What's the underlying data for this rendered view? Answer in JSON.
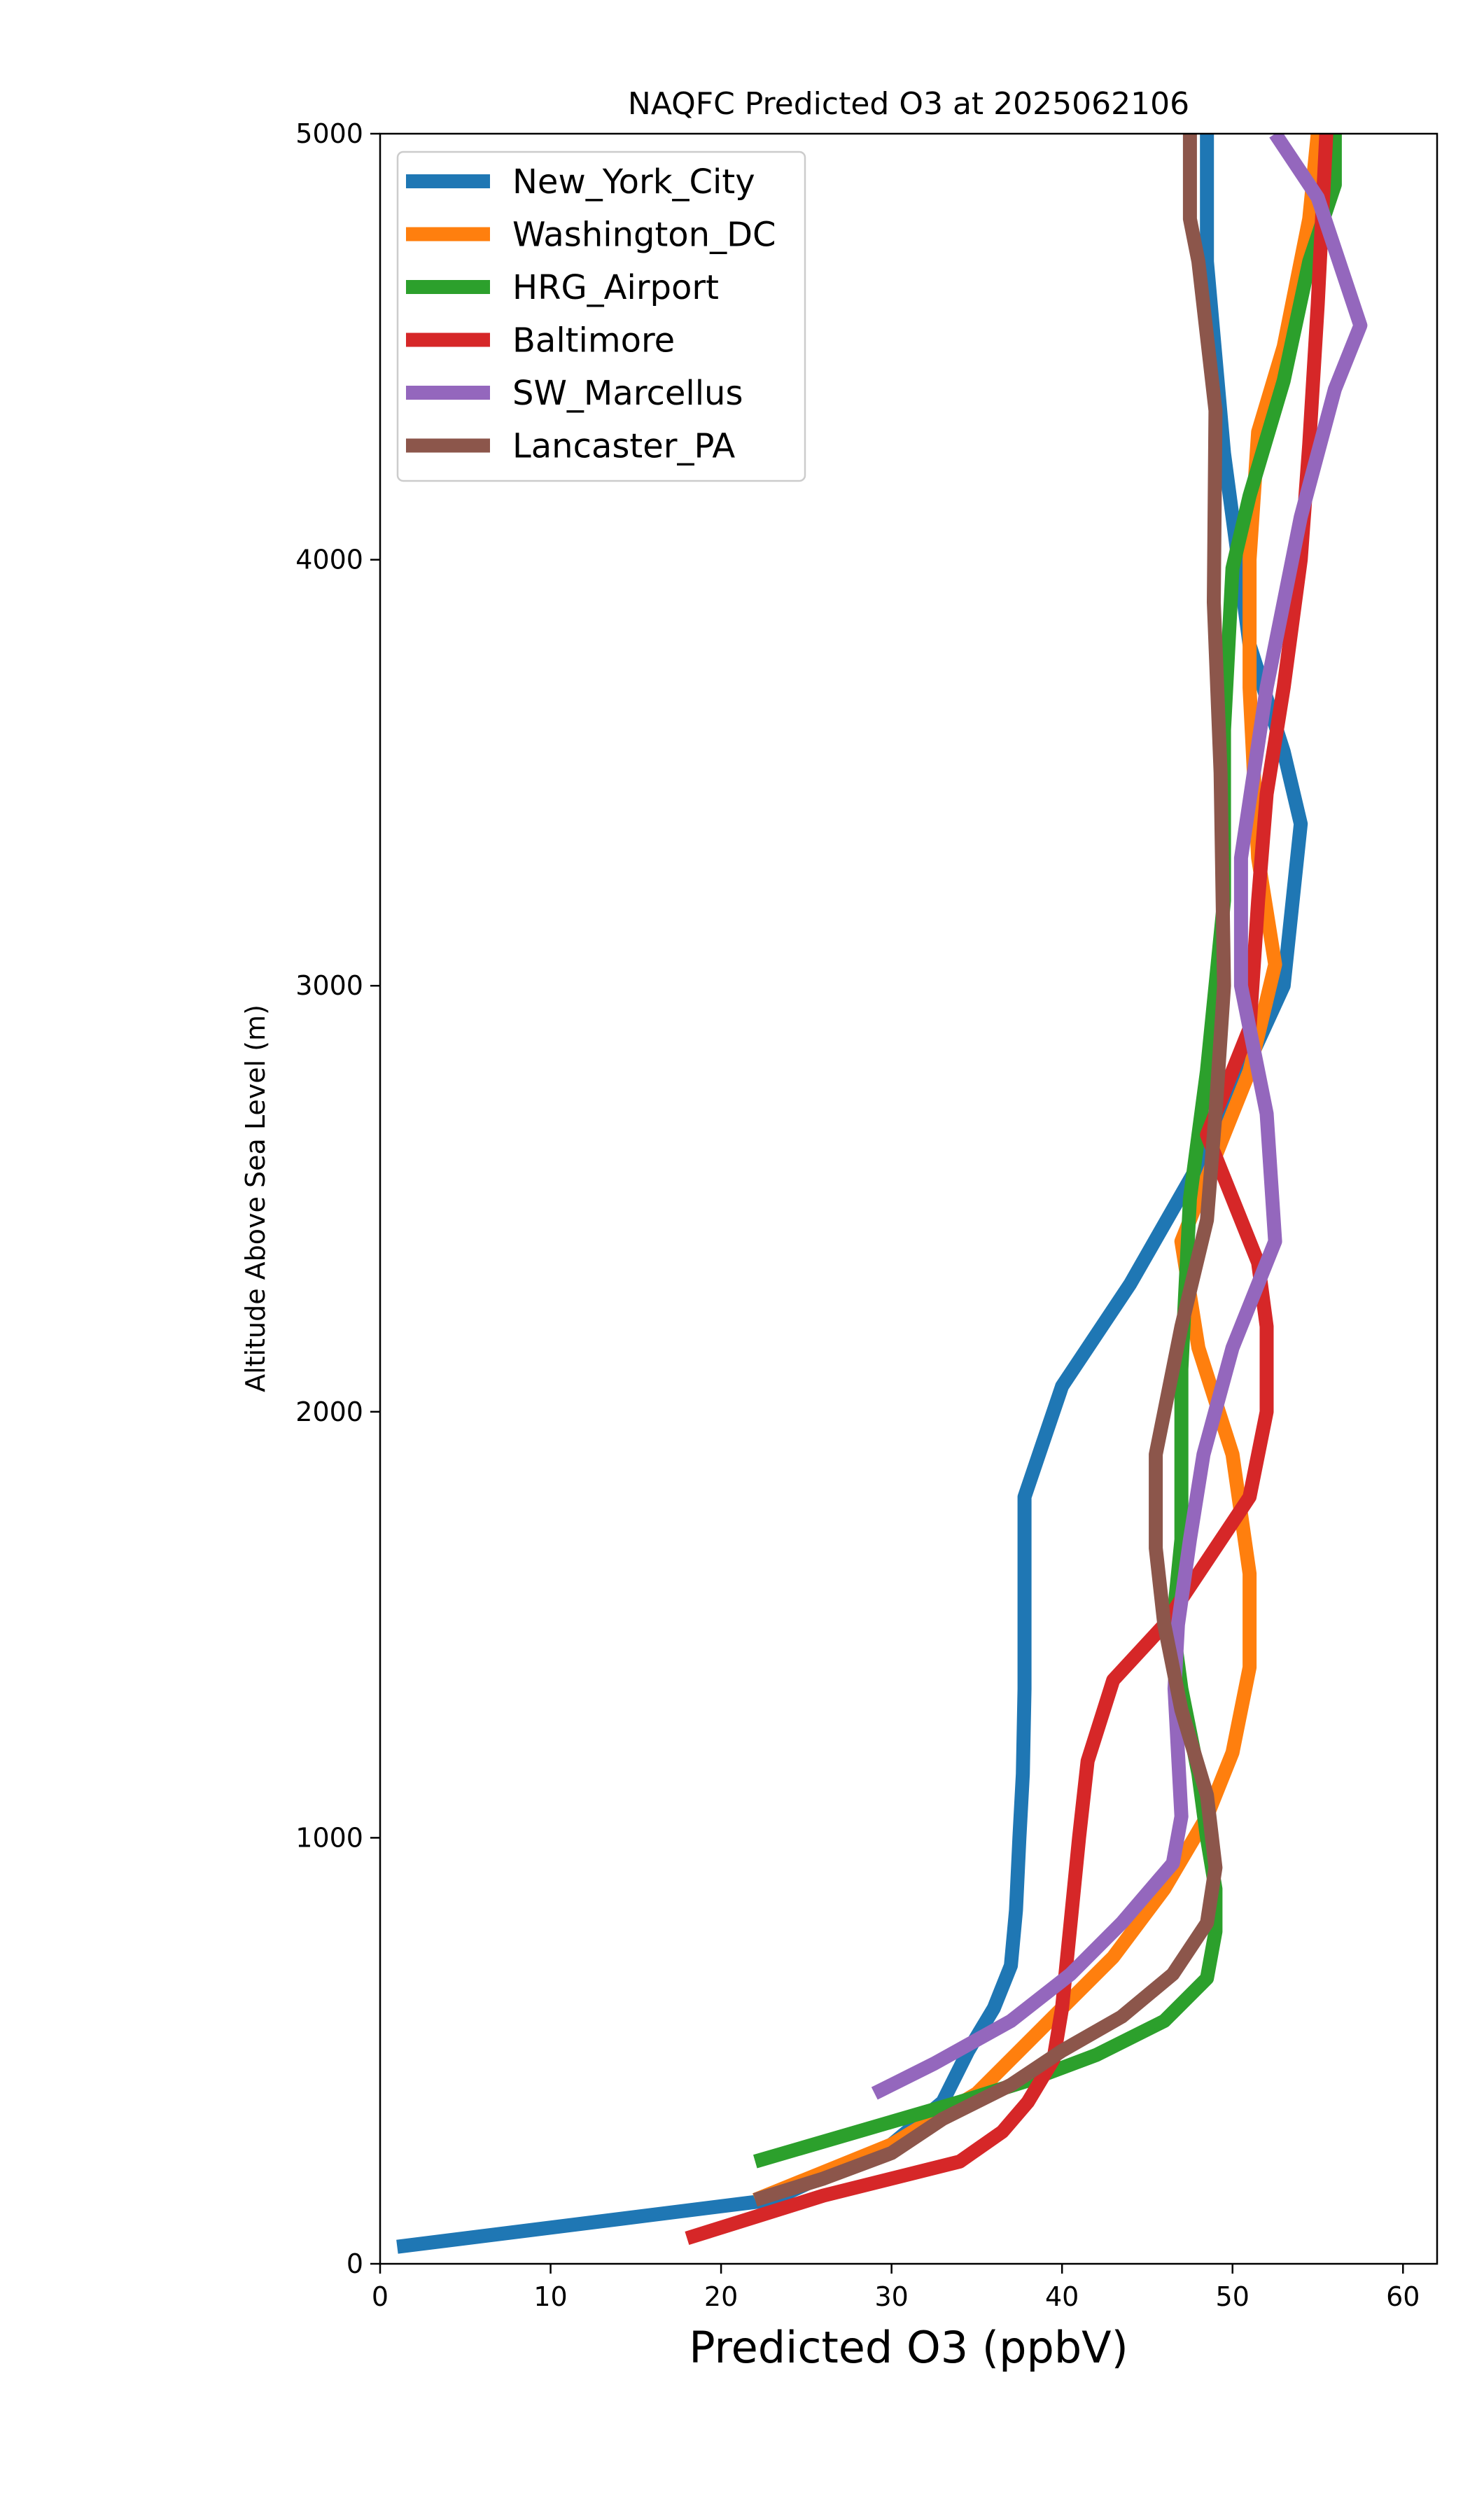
{
  "chart_data": {
    "type": "line",
    "title": "NAQFC Predicted O3 at 2025062106",
    "xlabel": "Predicted O3 (ppbV)",
    "ylabel": "Altitude Above Sea Level (m)",
    "xlim": [
      0,
      62
    ],
    "ylim": [
      0,
      5000
    ],
    "xticks": [
      0,
      10,
      20,
      30,
      40,
      50,
      60
    ],
    "yticks": [
      0,
      1000,
      2000,
      3000,
      4000,
      5000
    ],
    "grid": false,
    "legend_position": "top-left",
    "series": [
      {
        "name": "New_York_City",
        "color": "#1f77b4",
        "points": [
          [
            1,
            40
          ],
          [
            23,
            150
          ],
          [
            30,
            280
          ],
          [
            33,
            380
          ],
          [
            34.5,
            500
          ],
          [
            36,
            600
          ],
          [
            37,
            700
          ],
          [
            37.3,
            830
          ],
          [
            37.5,
            1000
          ],
          [
            37.7,
            1150
          ],
          [
            37.8,
            1350
          ],
          [
            37.8,
            1600
          ],
          [
            37.8,
            1800
          ],
          [
            40,
            2060
          ],
          [
            44,
            2300
          ],
          [
            49,
            2650
          ],
          [
            53,
            3000
          ],
          [
            54,
            3380
          ],
          [
            53,
            3550
          ],
          [
            51,
            3800
          ],
          [
            49.5,
            4250
          ],
          [
            48.5,
            4700
          ],
          [
            48.5,
            5000
          ]
        ]
      },
      {
        "name": "Washington_DC",
        "color": "#ff7f0e",
        "points": [
          [
            22,
            150
          ],
          [
            30,
            280
          ],
          [
            35,
            400
          ],
          [
            39,
            560
          ],
          [
            43,
            720
          ],
          [
            46,
            880
          ],
          [
            48.5,
            1050
          ],
          [
            50,
            1200
          ],
          [
            51,
            1400
          ],
          [
            51,
            1620
          ],
          [
            50,
            1900
          ],
          [
            48,
            2150
          ],
          [
            47,
            2400
          ],
          [
            49,
            2600
          ],
          [
            51,
            2800
          ],
          [
            52.5,
            3050
          ],
          [
            51.5,
            3300
          ],
          [
            51,
            3700
          ],
          [
            51,
            4000
          ],
          [
            51.5,
            4300
          ],
          [
            53,
            4500
          ],
          [
            54.5,
            4800
          ],
          [
            55,
            5000
          ]
        ]
      },
      {
        "name": "HRG_Airport",
        "color": "#2ca02c",
        "points": [
          [
            22,
            240
          ],
          [
            34,
            380
          ],
          [
            38,
            430
          ],
          [
            42,
            490
          ],
          [
            46,
            570
          ],
          [
            48.5,
            670
          ],
          [
            49,
            780
          ],
          [
            49,
            880
          ],
          [
            48.5,
            1000
          ],
          [
            48,
            1150
          ],
          [
            47,
            1350
          ],
          [
            46.5,
            1500
          ],
          [
            47,
            1700
          ],
          [
            47,
            2100
          ],
          [
            47.5,
            2500
          ],
          [
            48.5,
            2800
          ],
          [
            49.5,
            3200
          ],
          [
            49.5,
            3600
          ],
          [
            50,
            3980
          ],
          [
            51,
            4150
          ],
          [
            53,
            4420
          ],
          [
            54.5,
            4700
          ],
          [
            56,
            4880
          ],
          [
            56,
            5000
          ]
        ]
      },
      {
        "name": "Baltimore",
        "color": "#d62728",
        "points": [
          [
            18,
            60
          ],
          [
            26,
            160
          ],
          [
            34,
            240
          ],
          [
            36.5,
            310
          ],
          [
            38,
            380
          ],
          [
            39.5,
            480
          ],
          [
            40,
            600
          ],
          [
            40.5,
            800
          ],
          [
            41,
            1000
          ],
          [
            41.5,
            1180
          ],
          [
            43,
            1370
          ],
          [
            46,
            1500
          ],
          [
            48.5,
            1650
          ],
          [
            51,
            1800
          ],
          [
            52,
            2000
          ],
          [
            52,
            2200
          ],
          [
            51.5,
            2350
          ],
          [
            48.5,
            2650
          ],
          [
            51,
            2900
          ],
          [
            51.5,
            3200
          ],
          [
            52,
            3450
          ],
          [
            53,
            3700
          ],
          [
            54,
            4000
          ],
          [
            54.5,
            4270
          ],
          [
            55,
            4600
          ],
          [
            55.5,
            5000
          ]
        ]
      },
      {
        "name": "SW_Marcellus",
        "color": "#9467bd",
        "points": [
          [
            29,
            400
          ],
          [
            32.5,
            470
          ],
          [
            37,
            570
          ],
          [
            40.5,
            680
          ],
          [
            43.5,
            800
          ],
          [
            46.5,
            940
          ],
          [
            47,
            1050
          ],
          [
            46.8,
            1200
          ],
          [
            46.6,
            1350
          ],
          [
            46.8,
            1500
          ],
          [
            47.5,
            1700
          ],
          [
            48.3,
            1900
          ],
          [
            50,
            2150
          ],
          [
            52.5,
            2400
          ],
          [
            52,
            2700
          ],
          [
            50.5,
            3000
          ],
          [
            50.5,
            3300
          ],
          [
            52,
            3700
          ],
          [
            54,
            4100
          ],
          [
            56,
            4400
          ],
          [
            57.5,
            4550
          ],
          [
            55,
            4850
          ],
          [
            52.5,
            5000
          ]
        ]
      },
      {
        "name": "Lancaster_PA",
        "color": "#8c564b",
        "points": [
          [
            22,
            150
          ],
          [
            26,
            200
          ],
          [
            30,
            260
          ],
          [
            33,
            340
          ],
          [
            37,
            420
          ],
          [
            40,
            500
          ],
          [
            43.5,
            580
          ],
          [
            46.5,
            680
          ],
          [
            48.5,
            800
          ],
          [
            49,
            930
          ],
          [
            48.5,
            1100
          ],
          [
            47,
            1300
          ],
          [
            46,
            1500
          ],
          [
            45.5,
            1680
          ],
          [
            45.5,
            1900
          ],
          [
            47,
            2200
          ],
          [
            48.5,
            2450
          ],
          [
            49,
            2700
          ],
          [
            49.5,
            3000
          ],
          [
            49.3,
            3500
          ],
          [
            48.9,
            3900
          ],
          [
            49,
            4350
          ],
          [
            48,
            4700
          ],
          [
            47.5,
            4800
          ],
          [
            47.5,
            5000
          ]
        ]
      }
    ]
  }
}
